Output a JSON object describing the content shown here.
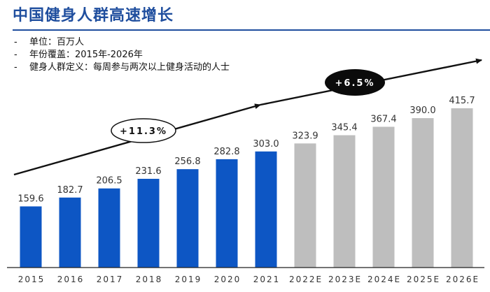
{
  "header": {
    "title": "中国健身人群高速增长"
  },
  "notes": [
    "单位：百万人",
    "年份覆盖：2015年-2026年",
    "健身人群定义：每周参与两次以上健身活动的人士"
  ],
  "bullet": "-",
  "colors": {
    "title": "#1f4e9e",
    "actual": "#0d56c4",
    "forecast": "#bebebe",
    "axis": "#222222"
  },
  "chart_data": {
    "type": "bar",
    "title": "中国健身人群高速增长",
    "ylabel": "百万人",
    "categories": [
      "2015",
      "2016",
      "2017",
      "2018",
      "2019",
      "2020",
      "2021",
      "2022E",
      "2023E",
      "2024E",
      "2025E",
      "2026E"
    ],
    "values": [
      159.6,
      182.7,
      206.5,
      231.6,
      256.8,
      282.8,
      303.0,
      323.9,
      345.4,
      367.4,
      390.0,
      415.7
    ],
    "value_labels": [
      "159.6",
      "182.7",
      "206.5",
      "231.6",
      "256.8",
      "282.8",
      "303.0",
      "323.9",
      "345.4",
      "367.4",
      "390.0",
      "415.7"
    ],
    "forecast_from_index": 7,
    "ylim": [
      0,
      420
    ],
    "annotations": [
      {
        "label": "+11.3%",
        "period": "2015-2021",
        "style": "outlined-ellipse"
      },
      {
        "label": "+6.5%",
        "period": "2021-2026E",
        "style": "filled-ellipse"
      }
    ]
  }
}
